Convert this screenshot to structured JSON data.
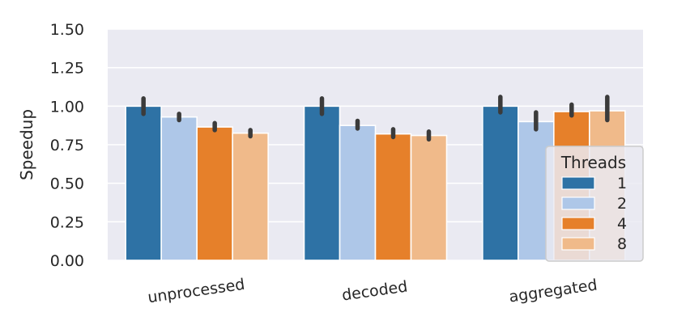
{
  "chart_data": {
    "type": "bar",
    "ylabel": "Speedup",
    "xlabel": "",
    "ylim": [
      0,
      1.5
    ],
    "yticks": [
      "0.00",
      "0.25",
      "0.50",
      "0.75",
      "1.00",
      "1.25",
      "1.50"
    ],
    "categories": [
      "unprocessed",
      "decoded",
      "aggregated"
    ],
    "legend": {
      "title": "Threads",
      "placement": "lower-right"
    },
    "grid": true,
    "series": [
      {
        "name": "1",
        "color": "#2e72a5",
        "values": [
          1.0,
          1.0,
          1.0
        ],
        "ci": [
          [
            0.95,
            1.05
          ],
          [
            0.95,
            1.05
          ],
          [
            0.96,
            1.06
          ]
        ]
      },
      {
        "name": "2",
        "color": "#aec7e8",
        "values": [
          0.93,
          0.875,
          0.9
        ],
        "ci": [
          [
            0.91,
            0.95
          ],
          [
            0.855,
            0.905
          ],
          [
            0.85,
            0.96
          ]
        ]
      },
      {
        "name": "4",
        "color": "#e6802a",
        "values": [
          0.865,
          0.82,
          0.965
        ],
        "ci": [
          [
            0.845,
            0.89
          ],
          [
            0.8,
            0.85
          ],
          [
            0.94,
            1.01
          ]
        ]
      },
      {
        "name": "8",
        "color": "#f0ba8a",
        "values": [
          0.825,
          0.81,
          0.97
        ],
        "ci": [
          [
            0.805,
            0.845
          ],
          [
            0.785,
            0.835
          ],
          [
            0.91,
            1.06
          ]
        ]
      }
    ]
  }
}
